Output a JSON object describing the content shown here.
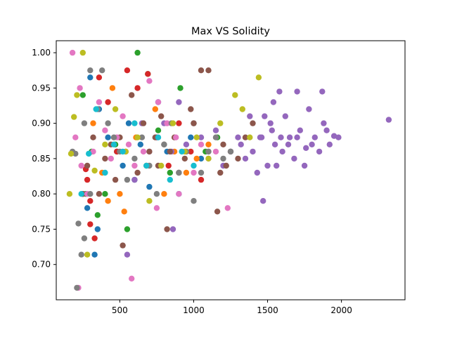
{
  "chart_data": {
    "type": "scatter",
    "title": "Max VS Solidity",
    "xlabel": "",
    "ylabel": "",
    "xlim": [
      70,
      2430
    ],
    "ylim": [
      0.65,
      1.017
    ],
    "xticks": [
      500,
      1000,
      1500,
      2000
    ],
    "xtick_labels": [
      "500",
      "1000",
      "1500",
      "2000"
    ],
    "yticks": [
      0.7,
      0.75,
      0.8,
      0.85,
      0.9,
      0.95,
      1.0
    ],
    "ytick_labels": [
      "0.70",
      "0.75",
      "0.80",
      "0.85",
      "0.90",
      "0.95",
      "1.00"
    ],
    "grid": false,
    "legend": "none",
    "series": [
      {
        "color": "#1f77b4",
        "points": [
          [
            300,
            0.965
          ],
          [
            350,
            0.75
          ],
          [
            360,
            0.92
          ],
          [
            420,
            0.88
          ],
          [
            480,
            0.86
          ],
          [
            520,
            0.84
          ],
          [
            560,
            0.9
          ],
          [
            600,
            0.82
          ],
          [
            640,
            0.87
          ],
          [
            700,
            0.81
          ],
          [
            760,
            0.93
          ],
          [
            820,
            0.86
          ],
          [
            900,
            0.8
          ],
          [
            980,
            0.88
          ],
          [
            1050,
            0.85
          ],
          [
            330,
            0.714
          ],
          [
            280,
            0.78
          ],
          [
            250,
            0.8
          ]
        ]
      },
      {
        "color": "#ff7f0e",
        "points": [
          [
            320,
            0.9
          ],
          [
            380,
            0.83
          ],
          [
            450,
            0.95
          ],
          [
            530,
            0.775
          ],
          [
            610,
            0.88
          ],
          [
            680,
            0.84
          ],
          [
            740,
            0.92
          ],
          [
            800,
            0.8
          ],
          [
            870,
            0.86
          ],
          [
            950,
            0.83
          ],
          [
            1020,
            0.85
          ],
          [
            1100,
            0.87
          ],
          [
            420,
            0.79
          ],
          [
            500,
            0.8
          ]
        ]
      },
      {
        "color": "#2ca02c",
        "points": [
          [
            250,
            0.94
          ],
          [
            310,
            0.86
          ],
          [
            400,
            0.8
          ],
          [
            470,
            0.87
          ],
          [
            550,
            0.75
          ],
          [
            620,
            1.0
          ],
          [
            690,
            0.97
          ],
          [
            760,
            0.89
          ],
          [
            840,
            0.83
          ],
          [
            910,
            0.95
          ],
          [
            1000,
            0.9
          ],
          [
            1080,
            0.86
          ],
          [
            1160,
            0.88
          ],
          [
            270,
            0.8
          ],
          [
            350,
            0.77
          ]
        ]
      },
      {
        "color": "#d62728",
        "points": [
          [
            280,
            0.82
          ],
          [
            300,
            0.79
          ],
          [
            330,
            0.737
          ],
          [
            360,
            0.965
          ],
          [
            420,
            0.93
          ],
          [
            480,
            0.86
          ],
          [
            550,
            0.975
          ],
          [
            620,
            0.95
          ],
          [
            690,
            0.97
          ],
          [
            750,
            0.88
          ],
          [
            830,
            0.84
          ],
          [
            900,
            0.9
          ],
          [
            980,
            0.86
          ],
          [
            1050,
            0.82
          ],
          [
            300,
            0.757
          ],
          [
            250,
            0.8
          ],
          [
            270,
            0.835
          ]
        ]
      },
      {
        "color": "#9467bd",
        "points": [
          [
            2320,
            0.905
          ],
          [
            1980,
            0.88
          ],
          [
            1950,
            0.882
          ],
          [
            1900,
            0.89
          ],
          [
            1870,
            0.945
          ],
          [
            1850,
            0.86
          ],
          [
            1800,
            0.87
          ],
          [
            1780,
            0.92
          ],
          [
            1750,
            0.84
          ],
          [
            1720,
            0.89
          ],
          [
            1700,
            0.945
          ],
          [
            1680,
            0.85
          ],
          [
            1650,
            0.88
          ],
          [
            1620,
            0.91
          ],
          [
            1600,
            0.86
          ],
          [
            1580,
            0.945
          ],
          [
            1550,
            0.87
          ],
          [
            1520,
            0.9
          ],
          [
            1500,
            0.84
          ],
          [
            1470,
            0.79
          ],
          [
            1450,
            0.88
          ],
          [
            1430,
            0.83
          ],
          [
            1400,
            0.86
          ],
          [
            1380,
            0.91
          ],
          [
            1350,
            0.85
          ],
          [
            1320,
            0.87
          ],
          [
            1300,
            0.88
          ],
          [
            1250,
            0.86
          ],
          [
            1200,
            0.84
          ],
          [
            1150,
            0.89
          ],
          [
            1100,
            0.86
          ],
          [
            1050,
            0.88
          ],
          [
            1000,
            0.9
          ],
          [
            950,
            0.87
          ],
          [
            900,
            0.93
          ],
          [
            850,
            0.86
          ],
          [
            800,
            0.9
          ],
          [
            750,
            0.88
          ],
          [
            700,
            0.86
          ],
          [
            650,
            0.9
          ],
          [
            600,
            0.82
          ],
          [
            550,
            0.714
          ],
          [
            860,
            0.75
          ],
          [
            1460,
            0.88
          ],
          [
            1530,
            0.89
          ],
          [
            1590,
            0.88
          ],
          [
            1640,
            0.87
          ],
          [
            1700,
            0.88
          ],
          [
            1760,
            0.865
          ],
          [
            1820,
            0.88
          ],
          [
            1880,
            0.9
          ],
          [
            1920,
            0.87
          ],
          [
            1540,
            0.93
          ],
          [
            1480,
            0.91
          ],
          [
            1560,
            0.84
          ]
        ]
      },
      {
        "color": "#8c564b",
        "points": [
          [
            1160,
            0.775
          ],
          [
            1100,
            0.975
          ],
          [
            1050,
            0.975
          ],
          [
            1000,
            0.9
          ],
          [
            980,
            0.92
          ],
          [
            940,
            0.85
          ],
          [
            900,
            0.83
          ],
          [
            870,
            0.88
          ],
          [
            840,
            0.86
          ],
          [
            820,
            0.75
          ],
          [
            800,
            0.87
          ],
          [
            780,
            0.91
          ],
          [
            760,
            0.84
          ],
          [
            740,
            0.88
          ],
          [
            700,
            0.86
          ],
          [
            660,
            0.9
          ],
          [
            620,
            0.83
          ],
          [
            580,
            0.94
          ],
          [
            540,
            0.86
          ],
          [
            520,
            0.727
          ],
          [
            500,
            0.88
          ],
          [
            470,
            0.82
          ],
          [
            440,
            0.87
          ],
          [
            400,
            0.85
          ],
          [
            360,
            0.8
          ],
          [
            320,
            0.88
          ],
          [
            280,
            0.84
          ],
          [
            250,
            0.8
          ],
          [
            1200,
            0.87
          ],
          [
            1250,
            0.86
          ],
          [
            1300,
            0.85
          ],
          [
            1350,
            0.88
          ],
          [
            1400,
            0.9
          ],
          [
            1180,
            0.83
          ],
          [
            1220,
            0.84
          ]
        ]
      },
      {
        "color": "#e377c2",
        "points": [
          [
            580,
            0.68
          ],
          [
            220,
            0.667
          ],
          [
            1230,
            0.78
          ],
          [
            750,
            0.78
          ],
          [
            900,
            0.8
          ],
          [
            1000,
            0.83
          ],
          [
            950,
            0.86
          ],
          [
            880,
            0.88
          ],
          [
            820,
            0.9
          ],
          [
            760,
            0.93
          ],
          [
            700,
            0.96
          ],
          [
            660,
            0.86
          ],
          [
            600,
            0.84
          ],
          [
            560,
            0.87
          ],
          [
            520,
            0.91
          ],
          [
            480,
            0.88
          ],
          [
            440,
            0.85
          ],
          [
            400,
            0.89
          ],
          [
            360,
            0.93
          ],
          [
            320,
            0.86
          ],
          [
            280,
            0.8
          ],
          [
            240,
            0.84
          ],
          [
            200,
            0.88
          ],
          [
            180,
            1.0
          ],
          [
            230,
            0.95
          ],
          [
            1050,
            0.87
          ],
          [
            1100,
            0.85
          ],
          [
            1150,
            0.86
          ]
        ]
      },
      {
        "color": "#7f7f7f",
        "points": [
          [
            210,
            0.667
          ],
          [
            220,
            0.758
          ],
          [
            240,
            0.714
          ],
          [
            260,
            0.737
          ],
          [
            300,
            0.975
          ],
          [
            350,
            0.92
          ],
          [
            380,
            0.975
          ],
          [
            420,
            0.9
          ],
          [
            460,
            0.88
          ],
          [
            500,
            0.86
          ],
          [
            550,
            0.82
          ],
          [
            600,
            0.85
          ],
          [
            650,
            0.88
          ],
          [
            700,
            0.84
          ],
          [
            750,
            0.8
          ],
          [
            800,
            0.87
          ],
          [
            850,
            0.9
          ],
          [
            900,
            0.83
          ],
          [
            950,
            0.86
          ],
          [
            1000,
            0.79
          ],
          [
            1050,
            0.83
          ],
          [
            1100,
            0.86
          ],
          [
            1150,
            0.88
          ],
          [
            1200,
            0.85
          ],
          [
            1250,
            0.86
          ],
          [
            300,
            0.8
          ],
          [
            260,
            0.9
          ],
          [
            200,
            0.857
          ],
          [
            180,
            0.86
          ]
        ]
      },
      {
        "color": "#bcbd22",
        "points": [
          [
            160,
            0.8
          ],
          [
            170,
            0.857
          ],
          [
            190,
            0.909
          ],
          [
            210,
            0.94
          ],
          [
            250,
            1.0
          ],
          [
            280,
            0.714
          ],
          [
            330,
            0.833
          ],
          [
            400,
            0.87
          ],
          [
            470,
            0.92
          ],
          [
            540,
            0.86
          ],
          [
            620,
            0.88
          ],
          [
            700,
            0.79
          ],
          [
            780,
            0.84
          ],
          [
            860,
            0.9
          ],
          [
            940,
            0.86
          ],
          [
            1020,
            0.88
          ],
          [
            1100,
            0.85
          ],
          [
            1180,
            0.9
          ],
          [
            1280,
            0.94
          ],
          [
            1330,
            0.92
          ],
          [
            1440,
            0.965
          ],
          [
            1380,
            0.88
          ]
        ]
      },
      {
        "color": "#17becf",
        "points": [
          [
            240,
            0.8
          ],
          [
            290,
            0.857
          ],
          [
            340,
            0.92
          ],
          [
            400,
            0.83
          ],
          [
            460,
            0.87
          ],
          [
            520,
            0.86
          ],
          [
            600,
            0.9
          ],
          [
            680,
            0.84
          ],
          [
            760,
            0.88
          ],
          [
            840,
            0.82
          ],
          [
            920,
            0.86
          ],
          [
            1000,
            0.84
          ]
        ]
      }
    ]
  }
}
